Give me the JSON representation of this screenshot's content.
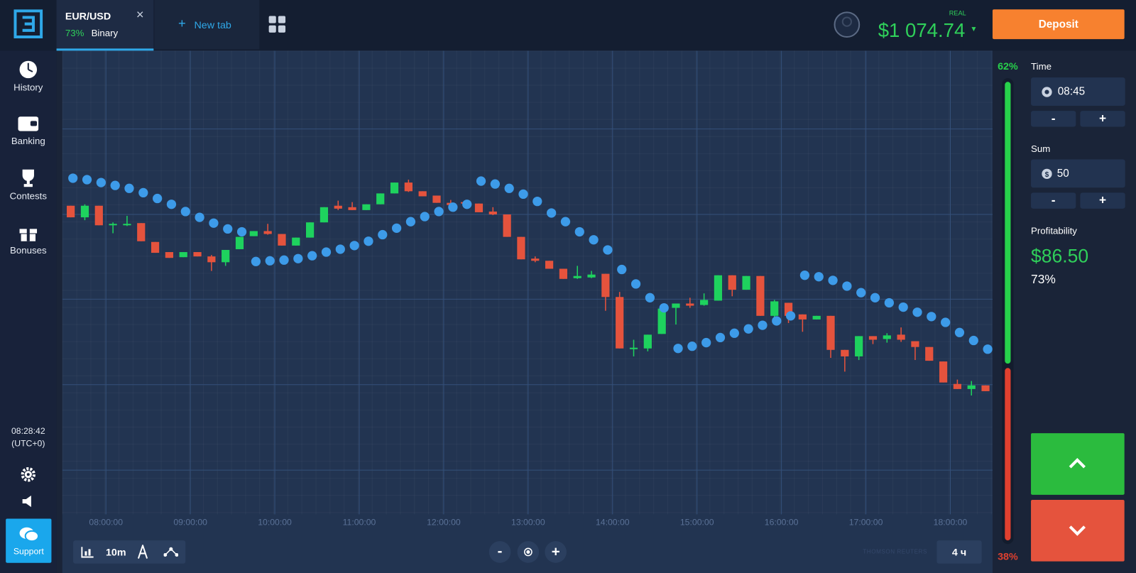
{
  "header": {
    "asset": "EUR/USD",
    "payout": "73%",
    "mode": "Binary",
    "new_tab": "New tab",
    "account_type": "REAL",
    "balance": "$1 074.74",
    "deposit": "Deposit"
  },
  "sidebar": {
    "items": [
      "History",
      "Banking",
      "Contests",
      "Bonuses"
    ],
    "clock": "08:28:42",
    "timezone": "(UTC+0)",
    "support": "Support"
  },
  "chart_data": {
    "type": "candlestick",
    "x": [
      455,
      465,
      475,
      485,
      495,
      505,
      515,
      525,
      535,
      545,
      555,
      565,
      575,
      585,
      595,
      605,
      615,
      625,
      635,
      645,
      655,
      665,
      675,
      685,
      695,
      705,
      715,
      725,
      735,
      745,
      755,
      765,
      775,
      785,
      795,
      805,
      815,
      825,
      835,
      845,
      855,
      865,
      875,
      885,
      895,
      905,
      915,
      925,
      935,
      945,
      955,
      965,
      975,
      985,
      995,
      1005,
      1015,
      1025,
      1035,
      1045,
      1055,
      1065,
      1075,
      1085,
      1095,
      1105
    ],
    "open": [
      426,
      410,
      426,
      399,
      399,
      402,
      376,
      362,
      355,
      362,
      356,
      348,
      366,
      384,
      391,
      387,
      371,
      382,
      403,
      426,
      424,
      420,
      428,
      443,
      458,
      446,
      440,
      430,
      431,
      429,
      418,
      414,
      383,
      353,
      350,
      339,
      326,
      327,
      332,
      300,
      228,
      229,
      249,
      285,
      291,
      289,
      295,
      330,
      310,
      329,
      274,
      292,
      276,
      269,
      274,
      227,
      218,
      246,
      242,
      248,
      239,
      231,
      211,
      180,
      173,
      178
    ],
    "high": [
      426,
      428,
      426,
      403,
      412,
      402,
      376,
      362,
      362,
      362,
      358,
      365,
      383,
      391,
      401,
      387,
      382,
      403,
      424,
      433,
      431,
      428,
      443,
      458,
      462,
      446,
      440,
      434,
      431,
      429,
      424,
      414,
      383,
      356,
      350,
      339,
      343,
      336,
      332,
      307,
      241,
      248,
      284,
      291,
      299,
      305,
      330,
      330,
      329,
      329,
      296,
      292,
      276,
      274,
      274,
      227,
      246,
      246,
      250,
      258,
      239,
      231,
      211,
      186,
      184,
      178
    ],
    "low": [
      410,
      406,
      399,
      388,
      398,
      377,
      361,
      354,
      355,
      356,
      336,
      343,
      366,
      384,
      386,
      371,
      371,
      382,
      403,
      420,
      420,
      420,
      428,
      443,
      445,
      439,
      430,
      426,
      429,
      417,
      413,
      383,
      352,
      348,
      339,
      325,
      325,
      326,
      281,
      229,
      218,
      225,
      249,
      262,
      285,
      288,
      295,
      301,
      310,
      274,
      272,
      264,
      252,
      269,
      216,
      197,
      213,
      235,
      237,
      238,
      213,
      212,
      182,
      173,
      164,
      170
    ],
    "close": [
      410,
      426,
      399,
      401,
      401,
      377,
      361,
      354,
      362,
      356,
      348,
      365,
      383,
      391,
      387,
      371,
      382,
      403,
      424,
      422,
      420,
      428,
      443,
      458,
      446,
      439,
      430,
      427,
      429,
      417,
      414,
      383,
      352,
      350,
      339,
      325,
      329,
      331,
      300,
      229,
      230,
      248,
      284,
      291,
      288,
      296,
      330,
      310,
      329,
      274,
      294,
      274,
      269,
      274,
      227,
      218,
      246,
      241,
      247,
      241,
      231,
      212,
      182,
      173,
      178,
      170
    ],
    "up_color": "#1ed25e",
    "down_color": "#e5533d",
    "indicator": {
      "color": "#3d9be9",
      "values": [
        464,
        462,
        458,
        454,
        450,
        444,
        436,
        428,
        418,
        410,
        402,
        394,
        390,
        349,
        350,
        351,
        353,
        357,
        362,
        366,
        371,
        377,
        386,
        395,
        404,
        411,
        418,
        424,
        428,
        460,
        456,
        450,
        442,
        432,
        416,
        404,
        390,
        379,
        365,
        338,
        318,
        299,
        285,
        229,
        232,
        237,
        244,
        250,
        256,
        261,
        267,
        274,
        330,
        328,
        323,
        315,
        306,
        299,
        292,
        286,
        279,
        273,
        265,
        251,
        240,
        228
      ]
    },
    "xlim": [
      449,
      1110
    ],
    "xticks": [
      {
        "value": 480,
        "label": "08:00:00"
      },
      {
        "value": 540,
        "label": "09:00:00"
      },
      {
        "value": 600,
        "label": "10:00:00"
      },
      {
        "value": 660,
        "label": "11:00:00"
      },
      {
        "value": 720,
        "label": "12:00:00"
      },
      {
        "value": 780,
        "label": "13:00:00"
      },
      {
        "value": 840,
        "label": "14:00:00"
      },
      {
        "value": 900,
        "label": "15:00:00"
      },
      {
        "value": 960,
        "label": "16:00:00"
      },
      {
        "value": 1020,
        "label": "17:00:00"
      },
      {
        "value": 1080,
        "label": "18:00:00"
      }
    ],
    "ylim": [
      0,
      640
    ],
    "grid": true
  },
  "toolbar": {
    "timeframe": "10m",
    "zoom_out": "-",
    "zoom_in": "+",
    "period": "4 ч",
    "source": "THOMSON REUTERS"
  },
  "sentiment": {
    "values": [
      62,
      38
    ],
    "value_labels": [
      "62%",
      "38%"
    ],
    "colors": [
      "#27d14b",
      "#e0402f"
    ]
  },
  "trade_panel": {
    "time_label": "Time",
    "time": "08:45",
    "minus": "-",
    "plus": "+",
    "sum_label": "Sum",
    "sum": "50",
    "profitability_label": "Profitability",
    "profit": "$86.50",
    "profit_rate": "73%"
  }
}
